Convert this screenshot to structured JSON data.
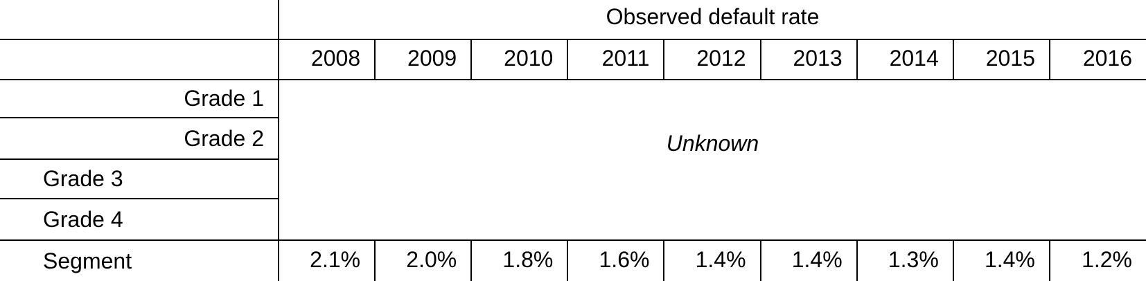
{
  "table": {
    "header": {
      "title": "Observed default rate"
    },
    "years": [
      "2008",
      "2009",
      "2010",
      "2011",
      "2012",
      "2013",
      "2014",
      "2015",
      "2016"
    ],
    "grades": [
      "Grade 1",
      "Grade 2",
      "Grade 3",
      "Grade 4"
    ],
    "merged_value": "Unknown",
    "segment": {
      "label": "Segment",
      "values": [
        "2.1%",
        "2.0%",
        "1.8%",
        "1.6%",
        "1.4%",
        "1.4%",
        "1.3%",
        "1.4%",
        "1.2%"
      ]
    },
    "colors": {
      "border": "#000000",
      "text": "#000000",
      "background": "#ffffff"
    }
  },
  "chart_data": {
    "type": "table",
    "title": "Observed default rate",
    "columns": [
      "2008",
      "2009",
      "2010",
      "2011",
      "2012",
      "2013",
      "2014",
      "2015",
      "2016"
    ],
    "rows": [
      {
        "label": "Grade 1",
        "values": "Unknown"
      },
      {
        "label": "Grade 2",
        "values": "Unknown"
      },
      {
        "label": "Grade 3",
        "values": "Unknown"
      },
      {
        "label": "Grade 4",
        "values": "Unknown"
      },
      {
        "label": "Segment",
        "values": [
          2.1,
          2.0,
          1.8,
          1.6,
          1.4,
          1.4,
          1.3,
          1.4,
          1.2
        ],
        "unit": "%"
      }
    ]
  }
}
